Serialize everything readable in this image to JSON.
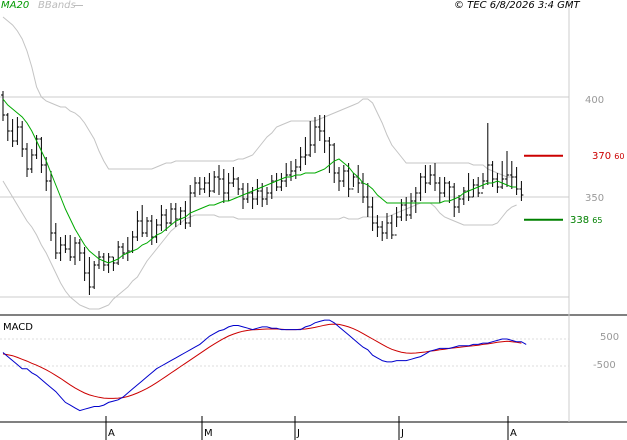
{
  "legend": {
    "ma": "MA20",
    "bbands": "BBands"
  },
  "copyright": "© TEC 6/8/2026 3:4 GMT",
  "macd_label": "MACD",
  "price_axis": [
    "400",
    "350"
  ],
  "macd_axis": [
    "500",
    "-500"
  ],
  "resistance": {
    "int": "370",
    "dec": "60"
  },
  "support": {
    "int": "338",
    "dec": "65"
  },
  "months": [
    "A",
    "M",
    "J",
    "J",
    "A"
  ],
  "colors": {
    "ma": "#00aa00",
    "bbands": "#c4c4c4",
    "price": "#000000",
    "macd": "#0000cc",
    "signal": "#cc0000",
    "resistance": "#cc0000",
    "support": "#008000"
  },
  "chart_data": {
    "type": "line",
    "price": {
      "ylim": [
        303,
        420
      ],
      "ohlc": [
        [
          401,
          391,
          403,
          388
        ],
        [
          391,
          383,
          392,
          378
        ],
        [
          383,
          378,
          389,
          375
        ],
        [
          378,
          385,
          390,
          376
        ],
        [
          385,
          374,
          388,
          370
        ],
        [
          374,
          364,
          377,
          360
        ],
        [
          364,
          371,
          374,
          362
        ],
        [
          371,
          379,
          381,
          369
        ],
        [
          379,
          366,
          380,
          362
        ],
        [
          366,
          358,
          370,
          353
        ],
        [
          358,
          332,
          363,
          328
        ],
        [
          332,
          322,
          337,
          319
        ],
        [
          322,
          326,
          330,
          318
        ],
        [
          326,
          324,
          331,
          322
        ],
        [
          324,
          320,
          331,
          318
        ],
        [
          320,
          327,
          330,
          316
        ],
        [
          327,
          322,
          329,
          318
        ],
        [
          322,
          312,
          325,
          308
        ],
        [
          312,
          305,
          320,
          301
        ],
        [
          305,
          316,
          318,
          304
        ],
        [
          316,
          320,
          323,
          314
        ],
        [
          320,
          316,
          322,
          313
        ],
        [
          316,
          320,
          322,
          312
        ],
        [
          320,
          317,
          320,
          313
        ],
        [
          317,
          325,
          328,
          316
        ],
        [
          325,
          322,
          327,
          319
        ],
        [
          322,
          323,
          330,
          318
        ],
        [
          323,
          330,
          333,
          322
        ],
        [
          330,
          338,
          343,
          328
        ],
        [
          338,
          332,
          346,
          330
        ],
        [
          332,
          338,
          340,
          330
        ],
        [
          338,
          330,
          341,
          326
        ],
        [
          330,
          336,
          339,
          327
        ],
        [
          336,
          341,
          346,
          333
        ],
        [
          341,
          337,
          344,
          333
        ],
        [
          337,
          344,
          347,
          336
        ],
        [
          344,
          339,
          347,
          335
        ],
        [
          339,
          343,
          345,
          336
        ],
        [
          343,
          337,
          348,
          334
        ],
        [
          337,
          352,
          356,
          335
        ],
        [
          352,
          357,
          360,
          350
        ],
        [
          357,
          354,
          360,
          351
        ],
        [
          354,
          357,
          360,
          352
        ],
        [
          357,
          353,
          362,
          350
        ],
        [
          353,
          360,
          363,
          352
        ],
        [
          360,
          359,
          366,
          351
        ],
        [
          359,
          352,
          364,
          347
        ],
        [
          352,
          357,
          362,
          348
        ],
        [
          357,
          359,
          365,
          355
        ],
        [
          359,
          354,
          360,
          351
        ],
        [
          354,
          349,
          357,
          344
        ],
        [
          349,
          352,
          357,
          347
        ],
        [
          352,
          349,
          355,
          344
        ],
        [
          349,
          353,
          359,
          346
        ],
        [
          353,
          349,
          357,
          345
        ],
        [
          349,
          352,
          355,
          346
        ],
        [
          352,
          358,
          361,
          349
        ],
        [
          358,
          355,
          362,
          353
        ],
        [
          355,
          358,
          362,
          353
        ],
        [
          358,
          361,
          367,
          355
        ],
        [
          361,
          363,
          368,
          358
        ],
        [
          363,
          365,
          369,
          359
        ],
        [
          365,
          370,
          375,
          363
        ],
        [
          370,
          371,
          380,
          366
        ],
        [
          371,
          376,
          388,
          370
        ],
        [
          376,
          385,
          390,
          372
        ],
        [
          385,
          383,
          391,
          378
        ],
        [
          383,
          378,
          391,
          372
        ],
        [
          378,
          376,
          380,
          362
        ],
        [
          376,
          362,
          377,
          357
        ],
        [
          362,
          358,
          365,
          353
        ],
        [
          358,
          363,
          366,
          355
        ],
        [
          363,
          354,
          367,
          350
        ],
        [
          354,
          360,
          362,
          355
        ],
        [
          360,
          357,
          366,
          352
        ],
        [
          357,
          350,
          362,
          347
        ],
        [
          350,
          345,
          357,
          340
        ],
        [
          345,
          337,
          350,
          333
        ],
        [
          337,
          335,
          341,
          330
        ],
        [
          335,
          332,
          338,
          328
        ],
        [
          332,
          337,
          342,
          329
        ],
        [
          337,
          331,
          341,
          329
        ],
        [
          331,
          340,
          345,
          335
        ],
        [
          340,
          346,
          349,
          338
        ],
        [
          346,
          341,
          350,
          338
        ],
        [
          341,
          348,
          352,
          339
        ],
        [
          348,
          352,
          355,
          342
        ],
        [
          352,
          360,
          362,
          348
        ],
        [
          360,
          357,
          366,
          352
        ],
        [
          357,
          361,
          366,
          356
        ],
        [
          361,
          357,
          367,
          353
        ],
        [
          357,
          352,
          360,
          347
        ],
        [
          352,
          357,
          360,
          350
        ],
        [
          357,
          355,
          358,
          347
        ],
        [
          355,
          345,
          357,
          340
        ],
        [
          345,
          349,
          351,
          342
        ],
        [
          349,
          353,
          355,
          346
        ],
        [
          353,
          350,
          362,
          348
        ],
        [
          350,
          356,
          359,
          350
        ],
        [
          356,
          352,
          360,
          350
        ],
        [
          352,
          358,
          362,
          354
        ],
        [
          358,
          366,
          387,
          356
        ],
        [
          366,
          359,
          368,
          355
        ],
        [
          359,
          355,
          362,
          352
        ],
        [
          355,
          359,
          368,
          354
        ],
        [
          359,
          361,
          373,
          355
        ],
        [
          361,
          360,
          368,
          354
        ],
        [
          360,
          354,
          365,
          351
        ],
        [
          354,
          351,
          358,
          348
        ]
      ],
      "ma20": [
        399,
        396,
        394,
        392,
        390,
        387,
        383,
        378,
        373,
        368,
        362,
        356,
        350,
        344,
        339,
        334,
        330,
        326,
        323,
        321,
        319,
        318,
        317,
        318,
        319,
        321,
        322,
        323,
        324,
        326,
        327,
        329,
        331,
        332,
        334,
        336,
        338,
        339,
        340,
        342,
        343,
        344,
        345,
        346,
        346,
        347,
        348,
        348,
        349,
        350,
        351,
        352,
        353,
        354,
        355,
        356,
        357,
        358,
        359,
        360,
        360,
        361,
        361,
        362,
        362,
        362,
        363,
        364,
        366,
        368,
        369,
        367,
        365,
        362,
        360,
        357,
        356,
        354,
        351,
        349,
        347,
        347,
        347,
        347,
        347,
        347,
        347,
        347,
        347,
        347,
        347,
        347,
        348,
        348,
        349,
        350,
        352,
        353,
        354,
        355,
        356,
        357,
        357,
        358,
        357,
        356,
        355,
        355
      ],
      "bb_upper": [
        440,
        438,
        436,
        433,
        429,
        423,
        415,
        405,
        400,
        398,
        397,
        396,
        395,
        395,
        393,
        392,
        390,
        387,
        383,
        379,
        373,
        368,
        364,
        364,
        364,
        364,
        364,
        364,
        364,
        364,
        364,
        364,
        365,
        366,
        367,
        367,
        368,
        368,
        368,
        368,
        368,
        368,
        368,
        368,
        368,
        368,
        368,
        368,
        368,
        369,
        369,
        370,
        371,
        374,
        377,
        380,
        382,
        385,
        386,
        387,
        388,
        388,
        388,
        388,
        388,
        388,
        389,
        390,
        391,
        392,
        393,
        394,
        395,
        396,
        397,
        399,
        399,
        397,
        392,
        387,
        381,
        376,
        373,
        370,
        367,
        367,
        367,
        367,
        367,
        367,
        367,
        367,
        367,
        367,
        367,
        367,
        367,
        367,
        366,
        366,
        366,
        364,
        363,
        362,
        361,
        360,
        360,
        360
      ],
      "bb_lower": [
        358,
        354,
        350,
        346,
        342,
        338,
        335,
        331,
        326,
        322,
        317,
        312,
        307,
        303,
        300,
        298,
        296,
        295,
        294,
        294,
        294,
        295,
        296,
        299,
        301,
        303,
        305,
        308,
        310,
        314,
        318,
        321,
        324,
        327,
        330,
        333,
        335,
        337,
        339,
        340,
        341,
        341,
        341,
        341,
        341,
        340,
        340,
        340,
        340,
        339,
        339,
        339,
        339,
        339,
        339,
        339,
        339,
        339,
        339,
        339,
        339,
        339,
        339,
        339,
        339,
        339,
        339,
        339,
        339,
        339,
        339,
        340,
        339,
        339,
        339,
        340,
        340,
        340,
        340,
        340,
        340,
        341,
        342,
        343,
        344,
        345,
        346,
        347,
        347,
        347,
        345,
        342,
        340,
        339,
        338,
        337,
        336,
        336,
        336,
        336,
        336,
        336,
        336,
        337,
        340,
        343,
        345,
        346
      ]
    },
    "macd": {
      "ylim": [
        -2300,
        1800
      ],
      "macd": [
        0,
        -150,
        -300,
        -450,
        -600,
        -600,
        -750,
        -850,
        -1000,
        -1150,
        -1300,
        -1450,
        -1650,
        -1850,
        -1950,
        -2050,
        -2150,
        -2100,
        -2050,
        -2000,
        -2000,
        -1950,
        -1850,
        -1800,
        -1750,
        -1650,
        -1500,
        -1350,
        -1200,
        -1050,
        -900,
        -750,
        -600,
        -500,
        -400,
        -300,
        -200,
        -100,
        0,
        100,
        200,
        300,
        450,
        600,
        700,
        800,
        850,
        950,
        1000,
        1000,
        950,
        900,
        850,
        900,
        950,
        950,
        900,
        900,
        850,
        850,
        850,
        850,
        850,
        950,
        1000,
        1100,
        1150,
        1200,
        1200,
        1100,
        950,
        800,
        650,
        500,
        350,
        200,
        100,
        -100,
        -200,
        -300,
        -350,
        -350,
        -300,
        -300,
        -300,
        -250,
        -200,
        -150,
        -50,
        50,
        100,
        150,
        150,
        150,
        200,
        250,
        250,
        250,
        300,
        300,
        350,
        350,
        400,
        450,
        500,
        500,
        450,
        400,
        400,
        300
      ],
      "signal": [
        -50,
        -80,
        -120,
        -180,
        -250,
        -320,
        -400,
        -470,
        -550,
        -640,
        -740,
        -850,
        -960,
        -1080,
        -1200,
        -1310,
        -1410,
        -1500,
        -1570,
        -1620,
        -1660,
        -1690,
        -1700,
        -1700,
        -1690,
        -1670,
        -1630,
        -1570,
        -1500,
        -1420,
        -1330,
        -1230,
        -1120,
        -1000,
        -880,
        -760,
        -640,
        -520,
        -400,
        -280,
        -160,
        -40,
        80,
        200,
        310,
        420,
        520,
        610,
        680,
        740,
        790,
        820,
        840,
        850,
        860,
        870,
        870,
        870,
        860,
        850,
        850,
        850,
        860,
        870,
        900,
        930,
        970,
        1010,
        1040,
        1050,
        1040,
        1000,
        950,
        880,
        800,
        700,
        600,
        500,
        400,
        300,
        200,
        120,
        60,
        10,
        -20,
        -30,
        -20,
        0,
        20,
        50,
        70,
        100,
        120,
        150,
        170,
        190,
        210,
        230,
        250,
        270,
        300,
        320,
        350,
        380,
        400,
        420,
        400,
        380,
        350
      ]
    }
  }
}
